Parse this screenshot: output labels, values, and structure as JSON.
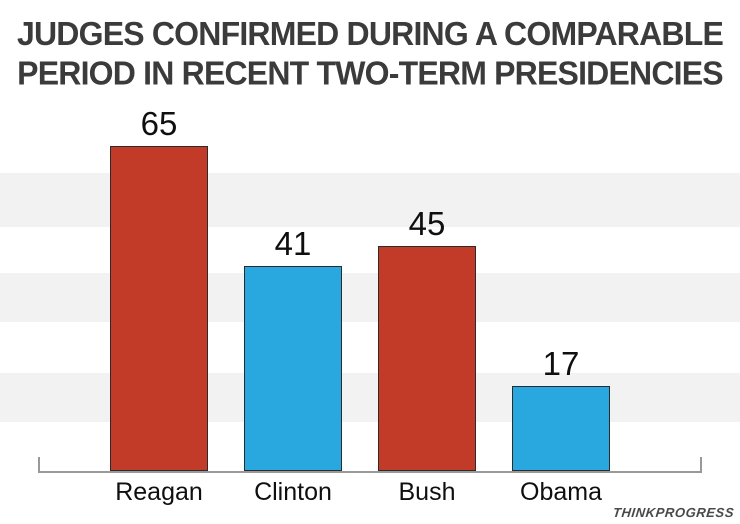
{
  "title": {
    "line1": "JUDGES CONFIRMED DURING A COMPARABLE",
    "line2": "PERIOD IN RECENT TWO-TERM PRESIDENCIES"
  },
  "branding": {
    "logo": "THINKPROGRESS"
  },
  "colors": {
    "red_bar": "#c23b28",
    "blue_bar": "#29a8df",
    "stripe": "#f2f2f2",
    "axis": "#999999",
    "bar_outline": "#2b2b2b",
    "title_text": "#3b3b3b",
    "label_text": "#0f0f0f",
    "logo_text": "#4a4a4a"
  },
  "chart_data": {
    "type": "bar",
    "title": "JUDGES CONFIRMED DURING A COMPARABLE PERIOD IN RECENT TWO-TERM PRESIDENCIES",
    "categories": [
      "Reagan",
      "Clinton",
      "Bush",
      "Obama"
    ],
    "values": [
      65,
      41,
      45,
      17
    ],
    "bar_colors": [
      "#c23b28",
      "#29a8df",
      "#c23b28",
      "#29a8df"
    ],
    "value_labels": [
      65,
      41,
      45,
      17
    ],
    "xlabel": "",
    "ylabel": "",
    "ylim": [
      0,
      75
    ],
    "grid": "horizontal-stripes",
    "legend": "none",
    "y_axis_ticks": "none"
  }
}
